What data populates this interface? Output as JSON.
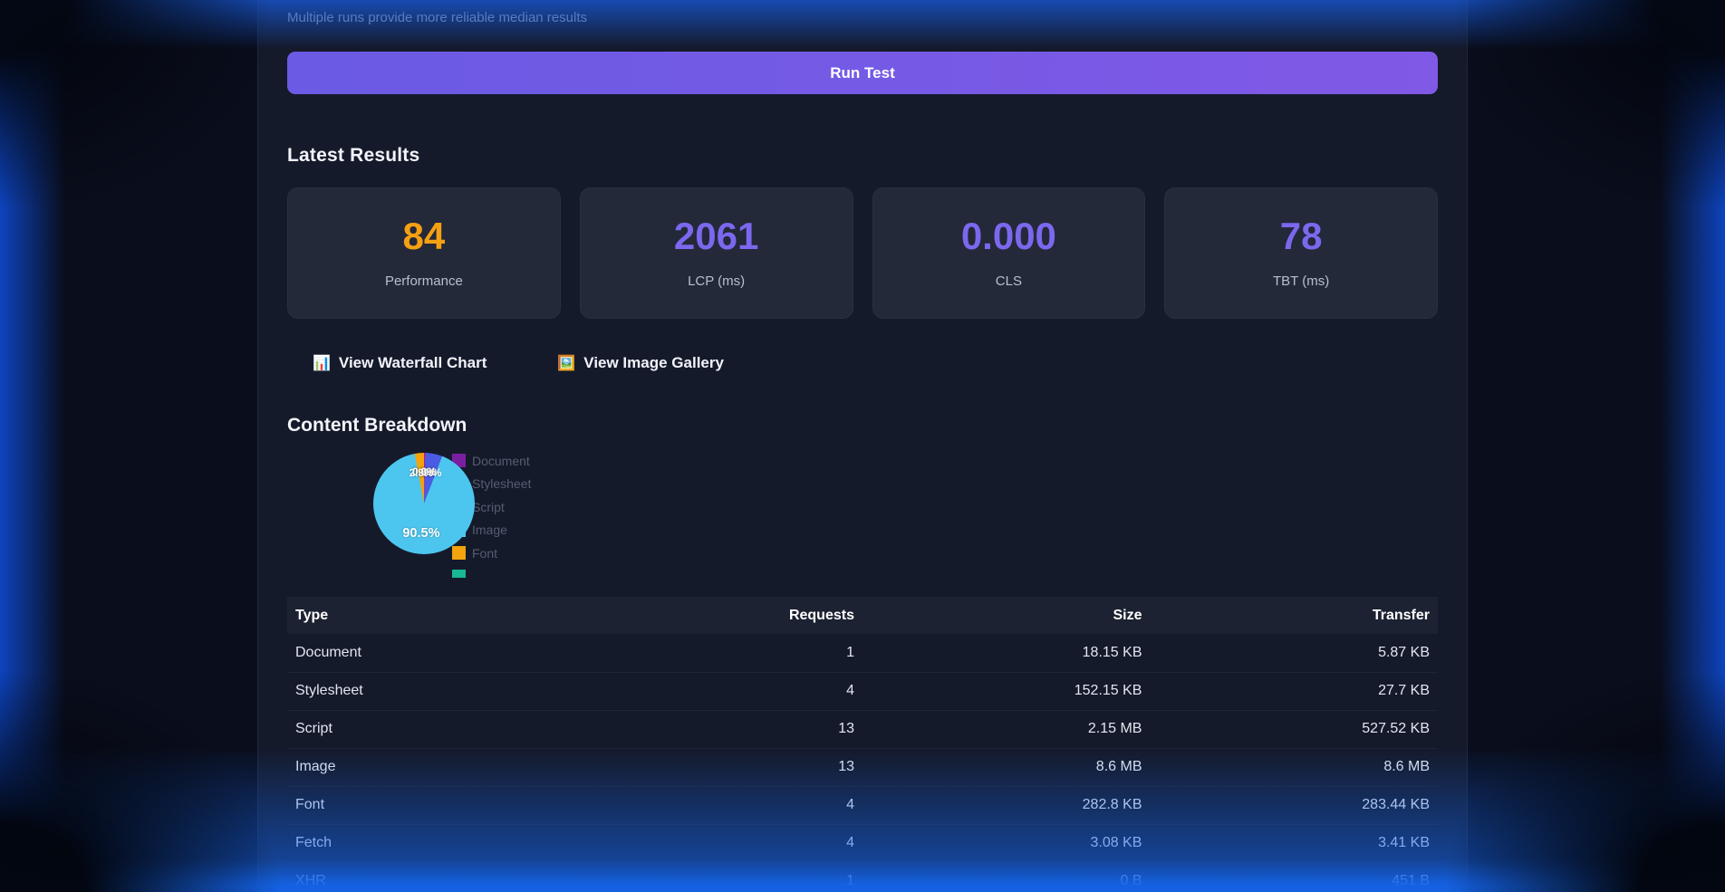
{
  "page": {
    "subtitle": "Multiple runs provide more reliable median results",
    "run_button_label": "Run Test",
    "accent_color": "#6c5ce7"
  },
  "results": {
    "heading": "Latest Results",
    "metrics": [
      {
        "value": "84",
        "label": "Performance",
        "color": "#f5a013"
      },
      {
        "value": "2061",
        "label": "LCP (ms)",
        "color": "#7b68ee"
      },
      {
        "value": "0.000",
        "label": "CLS",
        "color": "#7b68ee"
      },
      {
        "value": "78",
        "label": "TBT (ms)",
        "color": "#7b68ee"
      }
    ],
    "links": [
      {
        "icon": "📊",
        "icon_name": "bar-chart-icon",
        "label": "View Waterfall Chart"
      },
      {
        "icon": "🖼️",
        "icon_name": "image-gallery-icon",
        "label": "View Image Gallery"
      }
    ]
  },
  "breakdown": {
    "heading": "Content Breakdown",
    "chart_data": {
      "type": "pie",
      "title": "",
      "legend_position": "right",
      "slices": [
        {
          "label": "Document",
          "pct": 0.1,
          "color": "#7b1fa2"
        },
        {
          "label": "Stylesheet",
          "pct": 0.3,
          "color": "#e91e63"
        },
        {
          "label": "Script",
          "pct": 5.4,
          "color": "#4a5ce4"
        },
        {
          "label": "Image",
          "pct": 90.5,
          "color": "#4cc6ee"
        },
        {
          "label": "Font",
          "pct": 2.9,
          "color": "#f2a30d"
        },
        {
          "label": "",
          "pct": 0.0,
          "color": "#19b795"
        }
      ]
    },
    "table": {
      "headers": [
        "Type",
        "Requests",
        "Size",
        "Transfer"
      ],
      "rows": [
        [
          "Document",
          "1",
          "18.15 KB",
          "5.87 KB"
        ],
        [
          "Stylesheet",
          "4",
          "152.15 KB",
          "27.7 KB"
        ],
        [
          "Script",
          "13",
          "2.15 MB",
          "527.52 KB"
        ],
        [
          "Image",
          "13",
          "8.6 MB",
          "8.6 MB"
        ],
        [
          "Font",
          "4",
          "282.8 KB",
          "283.44 KB"
        ],
        [
          "Fetch",
          "4",
          "3.08 KB",
          "3.41 KB"
        ],
        [
          "XHR",
          "1",
          "0 B",
          "451 B"
        ]
      ]
    }
  }
}
